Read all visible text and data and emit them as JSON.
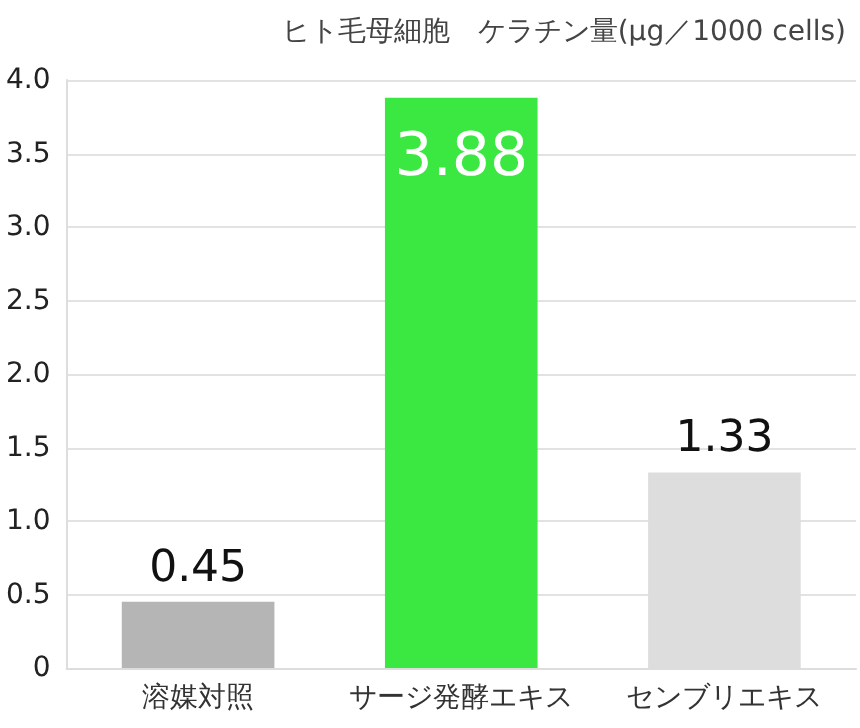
{
  "chart_data": {
    "type": "bar",
    "title": "ヒト毛母細胞　ケラチン量(μg／1000 cells)",
    "categories": [
      "溶媒対照",
      "サージ発酵エキス",
      "センブリエキス"
    ],
    "values": [
      0.45,
      3.88,
      1.33
    ],
    "colors": [
      "#b5b5b5",
      "#3be841",
      "#dcdddc"
    ],
    "ylim": [
      0,
      4
    ],
    "yticks": [
      0,
      0.5,
      {
        "value": 1,
        "label": "1.0"
      },
      1.5,
      {
        "value": 2,
        "label": "2.0"
      },
      2.5,
      {
        "value": 3,
        "label": "3.0"
      },
      3.5,
      {
        "value": 4,
        "label": "4.0"
      }
    ],
    "grid": "y",
    "data_labels": true
  }
}
